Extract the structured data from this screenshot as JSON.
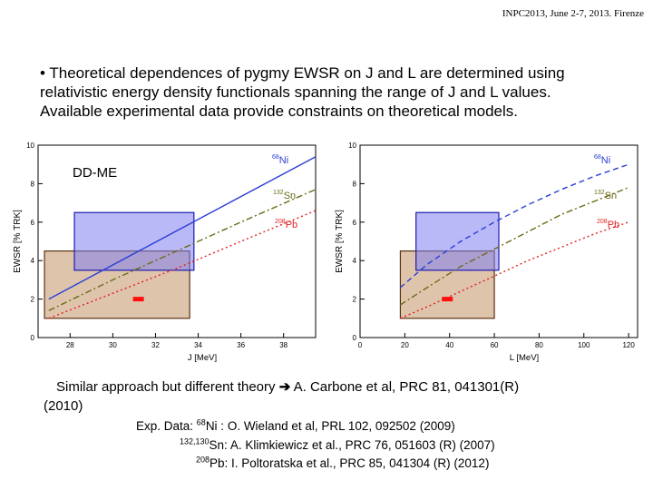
{
  "header": "INPC2013, June 2-7, 2013. Firenze",
  "bullet": {
    "line1": "• Theoretical dependences of pygmy EWSR on J and L are determined using",
    "line2": "relativistic energy density functionals spanning the range of J and L values.",
    "line3": "Available experimental data provide constraints on theoretical models."
  },
  "colors": {
    "ni": "#2a3fd6",
    "sn": "#6b6b1a",
    "pb": "#e02020",
    "box_blue": "#7f80f0",
    "box_brown": "#c08a5a",
    "point": "#ff1010"
  },
  "chart_data": [
    {
      "type": "line",
      "model_label": "DD-ME",
      "xlabel": "J [MeV]",
      "ylabel": "EWSR [% TRK]",
      "xlim": [
        26.5,
        39.5
      ],
      "ylim": [
        0,
        10
      ],
      "xticks": [
        28,
        30,
        32,
        34,
        36,
        38
      ],
      "yticks": [
        0,
        2,
        4,
        6,
        8,
        10
      ],
      "series": [
        {
          "name": "Ni",
          "mass": "68",
          "style": "solid",
          "x": [
            27,
            39.5
          ],
          "y": [
            2.0,
            9.4
          ]
        },
        {
          "name": "Sn",
          "mass": "132",
          "style": "dashdot",
          "x": [
            27,
            30,
            33,
            36,
            39.5
          ],
          "y": [
            1.4,
            3.0,
            4.5,
            6.0,
            7.7
          ]
        },
        {
          "name": "Pb",
          "mass": "208",
          "style": "dotted",
          "x": [
            27,
            30,
            33,
            36,
            39.5
          ],
          "y": [
            1.0,
            2.3,
            3.6,
            5.0,
            6.6
          ]
        }
      ],
      "boxes": [
        {
          "name": "Ni constraint",
          "x": [
            28.2,
            33.8
          ],
          "y": [
            3.5,
            6.5
          ]
        },
        {
          "name": "Pb constraint",
          "x": [
            26.8,
            33.6
          ],
          "y": [
            1.0,
            4.5
          ]
        }
      ],
      "point": {
        "x": 31.2,
        "y": 2.0
      }
    },
    {
      "type": "line",
      "xlabel": "L [MeV]",
      "ylabel": "EWSR [% TRK]",
      "xlim": [
        0,
        124
      ],
      "ylim": [
        0,
        10
      ],
      "xticks": [
        0,
        20,
        40,
        60,
        80,
        100,
        120
      ],
      "yticks": [
        0,
        2,
        4,
        6,
        8,
        10
      ],
      "series": [
        {
          "name": "Ni",
          "mass": "68",
          "style": "dashed",
          "x": [
            18,
            30,
            45,
            60,
            75,
            90,
            105,
            120
          ],
          "y": [
            2.6,
            3.8,
            5.0,
            6.0,
            6.9,
            7.7,
            8.4,
            9.0
          ]
        },
        {
          "name": "Sn",
          "mass": "132",
          "style": "dashdot",
          "x": [
            18,
            30,
            45,
            60,
            75,
            90,
            105,
            120
          ],
          "y": [
            1.7,
            2.6,
            3.7,
            4.6,
            5.5,
            6.4,
            7.1,
            7.8
          ]
        },
        {
          "name": "Pb",
          "mass": "208",
          "style": "dotted",
          "x": [
            18,
            30,
            45,
            60,
            75,
            90,
            105,
            120
          ],
          "y": [
            1.0,
            1.6,
            2.4,
            3.2,
            4.0,
            4.7,
            5.4,
            6.0
          ]
        }
      ],
      "boxes": [
        {
          "name": "Ni constraint",
          "x": [
            25,
            62
          ],
          "y": [
            3.5,
            6.5
          ]
        },
        {
          "name": "Pb constraint",
          "x": [
            18,
            60
          ],
          "y": [
            1.0,
            4.5
          ]
        }
      ],
      "point": {
        "x": 39,
        "y": 2.0
      }
    }
  ],
  "similar": {
    "text": "Similar approach but different theory",
    "ref": "A. Carbone et al, PRC 81, 041301(R)",
    "year": "(2010)"
  },
  "refs": {
    "r1_prefix": "Exp. Data: ",
    "r1_mass": "68",
    "r1_text": "Ni : O. Wieland et al, PRL 102, 092502 (2009)",
    "r2_mass": "132,130",
    "r2_text": "Sn: A. Klimkiewicz et al., PRC 76, 051603 (R) (2007)",
    "r3_mass": "208",
    "r3_text": "Pb: I. Poltoratska et al., PRC 85, 041304 (R) (2012)"
  }
}
